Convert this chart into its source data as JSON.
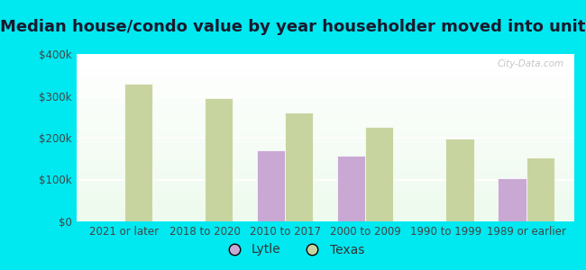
{
  "title": "Median house/condo value by year householder moved into unit",
  "categories": [
    "2021 or later",
    "2018 to 2020",
    "2010 to 2017",
    "2000 to 2009",
    "1990 to 1999",
    "1989 or earlier"
  ],
  "lytle_values": [
    null,
    null,
    170000,
    157000,
    null,
    103000
  ],
  "texas_values": [
    328000,
    295000,
    260000,
    225000,
    198000,
    152000
  ],
  "lytle_color": "#c9a8d4",
  "texas_color": "#c8d4a0",
  "ylim": [
    0,
    400000
  ],
  "yticks": [
    0,
    100000,
    200000,
    300000,
    400000
  ],
  "ytick_labels": [
    "$0",
    "$100k",
    "$200k",
    "$300k",
    "$400k"
  ],
  "outer_background": "#00e8f0",
  "bar_width": 0.35,
  "title_fontsize": 13,
  "tick_fontsize": 8.5,
  "legend_fontsize": 10,
  "watermark": "City-Data.com"
}
